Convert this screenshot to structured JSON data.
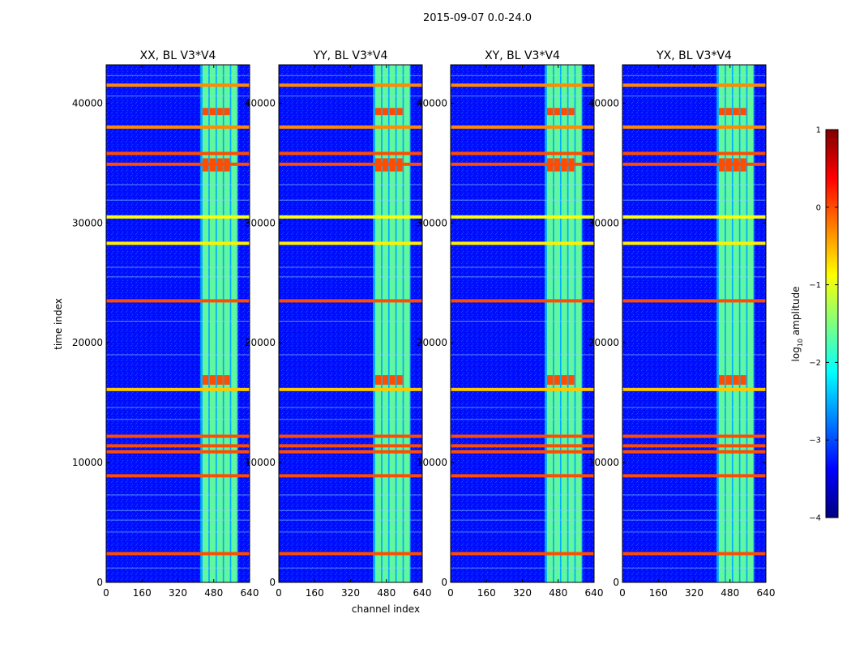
{
  "figure": {
    "suptitle": "2015-09-07 0.0-24.0"
  },
  "chart_data": {
    "type": "heatmap",
    "title": "2015-09-07 0.0-24.0",
    "xlabel": "channel index",
    "ylabel": "time index",
    "xlim": [
      0,
      640
    ],
    "ylim": [
      0,
      43200
    ],
    "x_ticks": [
      0,
      160,
      320,
      480,
      640
    ],
    "y_ticks": [
      0,
      10000,
      20000,
      30000,
      40000
    ],
    "panels": [
      {
        "title": "XX, BL V3*V4"
      },
      {
        "title": "YY, BL V3*V4"
      },
      {
        "title": "XY, BL V3*V4"
      },
      {
        "title": "YX, BL V3*V4"
      }
    ],
    "colorbar": {
      "label": "log",
      "label_sub": "10",
      "label_rest": " amplitude",
      "range": [
        -4,
        1
      ],
      "ticks": [
        1,
        0,
        -1,
        -2,
        -3,
        -4
      ],
      "tick_labels": [
        "1",
        "0",
        "−1",
        "−2",
        "−3",
        "−4"
      ],
      "colormap": [
        "#00007f",
        "#0000ff",
        "#007fff",
        "#00ffff",
        "#7fff7f",
        "#ffff00",
        "#ff7f00",
        "#ff0000",
        "#7f0000"
      ]
    },
    "active_band": {
      "channel_range": [
        420,
        588
      ],
      "sub_bands": [
        [
          430,
          456
        ],
        [
          462,
          488
        ],
        [
          494,
          520
        ],
        [
          526,
          552
        ],
        [
          558,
          584
        ]
      ]
    },
    "rfi_rows": [
      {
        "time": 2400,
        "log_amp": 0.0
      },
      {
        "time": 8900,
        "log_amp": 0.0
      },
      {
        "time": 10900,
        "log_amp": 0.0
      },
      {
        "time": 11400,
        "log_amp": 0.0
      },
      {
        "time": 12200,
        "log_amp": 0.0
      },
      {
        "time": 23500,
        "log_amp": 0.0
      },
      {
        "time": 34900,
        "log_amp": 0.0
      },
      {
        "time": 35800,
        "log_amp": 0.0
      },
      {
        "time": 30500,
        "log_amp": -0.9
      },
      {
        "time": 28300,
        "log_amp": -0.8
      },
      {
        "time": 16100,
        "log_amp": -0.6
      },
      {
        "time": 38000,
        "log_amp": -0.3
      },
      {
        "time": 41500,
        "log_amp": -0.3
      }
    ],
    "hot_regions": [
      {
        "time_range": [
          16500,
          17300
        ],
        "log_amp": 0.0
      },
      {
        "time_range": [
          34300,
          35400
        ],
        "log_amp": 0.0
      },
      {
        "time_range": [
          39000,
          39600
        ],
        "log_amp": 0.0
      }
    ]
  }
}
